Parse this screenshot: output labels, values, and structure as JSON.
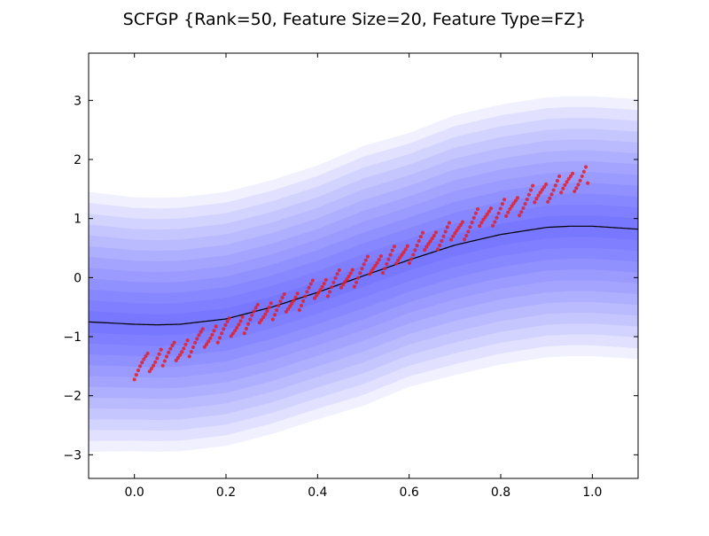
{
  "chart_data": {
    "type": "scatter",
    "title": "SCFGP {Rank=50, Feature Size=20, Feature Type=FZ}",
    "xlabel": "",
    "ylabel": "",
    "xlim": [
      -0.1,
      1.1
    ],
    "ylim": [
      -3.4,
      3.8
    ],
    "x_ticks": [
      0.0,
      0.2,
      0.4,
      0.6,
      0.8,
      1.0
    ],
    "x_tick_labels": [
      "0.0",
      "0.2",
      "0.4",
      "0.6",
      "0.8",
      "1.0"
    ],
    "y_ticks": [
      -3,
      -2,
      -1,
      0,
      1,
      2,
      3
    ],
    "y_tick_labels": [
      "−3",
      "−2",
      "−1",
      "0",
      "1",
      "2",
      "3"
    ],
    "grid": false,
    "legend": "none",
    "mean_curve": {
      "color": "#000000",
      "x": [
        -0.1,
        0.0,
        0.05,
        0.1,
        0.2,
        0.3,
        0.4,
        0.5,
        0.6,
        0.7,
        0.8,
        0.9,
        0.95,
        1.0,
        1.1
      ],
      "y": [
        -0.75,
        -0.79,
        -0.8,
        -0.79,
        -0.7,
        -0.5,
        -0.25,
        0.03,
        0.3,
        0.55,
        0.73,
        0.85,
        0.87,
        0.87,
        0.82
      ]
    },
    "uncertainty_bands": {
      "color": "#0000ff",
      "outer_half_width": [
        2.2,
        2.15,
        2.15,
        2.15,
        2.15,
        2.15,
        2.15,
        2.2,
        2.15,
        2.2,
        2.2,
        2.2,
        2.2,
        2.2,
        2.2
      ],
      "levels": 12
    },
    "observations": {
      "color": "#e0202a",
      "x_start": 0.0,
      "x_end": 0.99,
      "n_points": 240,
      "trend": {
        "y_at_start": -1.55,
        "y_at_end": 1.75
      },
      "sawtooth_period": 0.03,
      "sawtooth_amplitude": 0.35
    }
  }
}
